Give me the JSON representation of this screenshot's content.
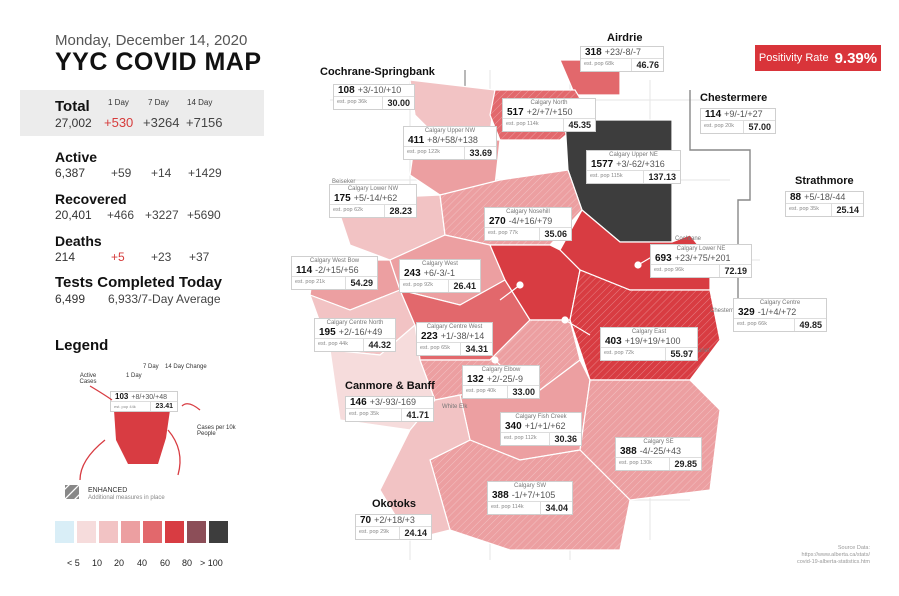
{
  "header": {
    "date": "Monday, December 14, 2020",
    "title": "YYC COVID MAP"
  },
  "columns": {
    "day1": "1 Day",
    "day7": "7 Day",
    "day14": "14 Day"
  },
  "stats": {
    "total": {
      "label": "Total",
      "value": "27,002",
      "c1": "+530",
      "c7": "+3264",
      "c14": "+7156"
    },
    "active": {
      "label": "Active",
      "value": "6,387",
      "c1": "+59",
      "c7": "+14",
      "c14": "+1429"
    },
    "recovered": {
      "label": "Recovered",
      "value": "20,401",
      "c1": "+466",
      "c7": "+3227",
      "c14": "+5690"
    },
    "deaths": {
      "label": "Deaths",
      "value": "214",
      "c1": "+5",
      "c7": "+23",
      "c14": "+37"
    },
    "tests": {
      "label": "Tests Completed Today",
      "value": "6,499",
      "avg": "6,933/7-Day Average"
    }
  },
  "positivity": {
    "label": "Positivity Rate",
    "value": "9.39%"
  },
  "regions": {
    "cochrane": {
      "label": "Cochrane-Springbank",
      "active": "108",
      "change": "+3/-10/+10",
      "pop": "est. pop 36k",
      "rate": "30.00"
    },
    "airdrie": {
      "label": "Airdrie",
      "active": "318",
      "change": "+23/-8/-7",
      "pop": "est. pop 68k",
      "rate": "46.76"
    },
    "chestermere": {
      "label": "Chestermere",
      "active": "114",
      "change": "+9/-1/+27",
      "pop": "est. pop 20k",
      "rate": "57.00"
    },
    "strathmore": {
      "label": "Strathmore",
      "active": "88",
      "change": "+5/-18/-44",
      "pop": "est. pop 35k",
      "rate": "25.14"
    },
    "canmore": {
      "label": "Canmore & Banff",
      "active": "146",
      "change": "+3/-93/-169",
      "pop": "est. pop 35k",
      "rate": "41.71"
    },
    "okotoks": {
      "label": "Okotoks",
      "active": "70",
      "change": "+2/+18/+3",
      "pop": "est. pop 29k",
      "rate": "24.14"
    },
    "north": {
      "label": "Calgary North",
      "active": "517",
      "change": "+2/+7/+150",
      "pop": "est. pop 114k",
      "rate": "45.35"
    },
    "uppernw": {
      "label": "Calgary Upper NW",
      "active": "411",
      "change": "+8/+58/+138",
      "pop": "est. pop 122k",
      "rate": "33.69"
    },
    "upperne": {
      "label": "Calgary Upper NE",
      "active": "1577",
      "change": "+3/-62/+316",
      "pop": "est. pop 115k",
      "rate": "137.13"
    },
    "lowernw": {
      "label": "Calgary Lower NW",
      "active": "175",
      "change": "+5/-14/+62",
      "pop": "est. pop 62k",
      "rate": "28.23"
    },
    "nosehill": {
      "label": "Calgary Nosehill",
      "active": "270",
      "change": "-4/+16/+79",
      "pop": "est. pop 77k",
      "rate": "35.06"
    },
    "lowerne": {
      "label": "Calgary Lower NE",
      "active": "693",
      "change": "+23/+75/+201",
      "pop": "est. pop 96k",
      "rate": "72.19"
    },
    "westbow": {
      "label": "Calgary West Bow",
      "active": "114",
      "change": "-2/+15/+56",
      "pop": "est. pop 21k",
      "rate": "54.29"
    },
    "west": {
      "label": "Calgary West",
      "active": "243",
      "change": "+6/-3/-1",
      "pop": "est. pop 92k",
      "rate": "26.41"
    },
    "centrenorth": {
      "label": "Calgary Centre North",
      "active": "195",
      "change": "+2/-16/+49",
      "pop": "est. pop 44k",
      "rate": "44.32"
    },
    "centrewest": {
      "label": "Calgary Centre West",
      "active": "223",
      "change": "+1/-38/+14",
      "pop": "est. pop 65k",
      "rate": "34.31"
    },
    "centre": {
      "label": "Calgary Centre",
      "active": "329",
      "change": "-1/+4/+72",
      "pop": "est. pop 66k",
      "rate": "49.85"
    },
    "east": {
      "label": "Calgary East",
      "active": "403",
      "change": "+19/+19/+100",
      "pop": "est. pop 72k",
      "rate": "55.97"
    },
    "elbow": {
      "label": "Calgary Elbow",
      "active": "132",
      "change": "+2/-25/-9",
      "pop": "est. pop 40k",
      "rate": "33.00"
    },
    "fishcreek": {
      "label": "Calgary Fish Creek",
      "active": "340",
      "change": "+1/+1/+62",
      "pop": "est. pop 112k",
      "rate": "30.36"
    },
    "se": {
      "label": "Calgary SE",
      "active": "388",
      "change": "-4/-25/+43",
      "pop": "est. pop 130k",
      "rate": "29.85"
    },
    "sw": {
      "label": "Calgary SW",
      "active": "388",
      "change": "-1/+7/+105",
      "pop": "est. pop 114k",
      "rate": "34.04"
    }
  },
  "legend": {
    "title": "Legend",
    "active_cases": "Active Cases",
    "one_day": "1 Day",
    "seven_day": "7 Day",
    "fourteen_day": "14 Day Change",
    "per10k": "Cases per 10k People",
    "example_active": "103",
    "example_change": "+8/+30/+48",
    "example_pop": "est. pop 44k",
    "example_rate": "23.41",
    "enhanced": "ENHANCED",
    "enhanced_sub": "Additional measures in place",
    "scale_labels": [
      "< 5",
      "10",
      "20",
      "40",
      "60",
      "80",
      "> 100"
    ],
    "scale_colors": [
      "#d9eef7",
      "#f6dcdc",
      "#f2c3c4",
      "#ec9fa1",
      "#e2686c",
      "#d83c42",
      "#8c4e58",
      "#3d3d3d"
    ]
  },
  "map_labels": {
    "beiseker": "Beiseker",
    "white_elk": "White Elk",
    "cochrane_town": "Cochrane",
    "chestermere_town": "Chestermere",
    "janet": "Janet"
  },
  "source": {
    "label": "Source Data:",
    "line1": "https://www.alberta.ca/stats/",
    "line2": "covid-19-alberta-statistics.htm"
  }
}
